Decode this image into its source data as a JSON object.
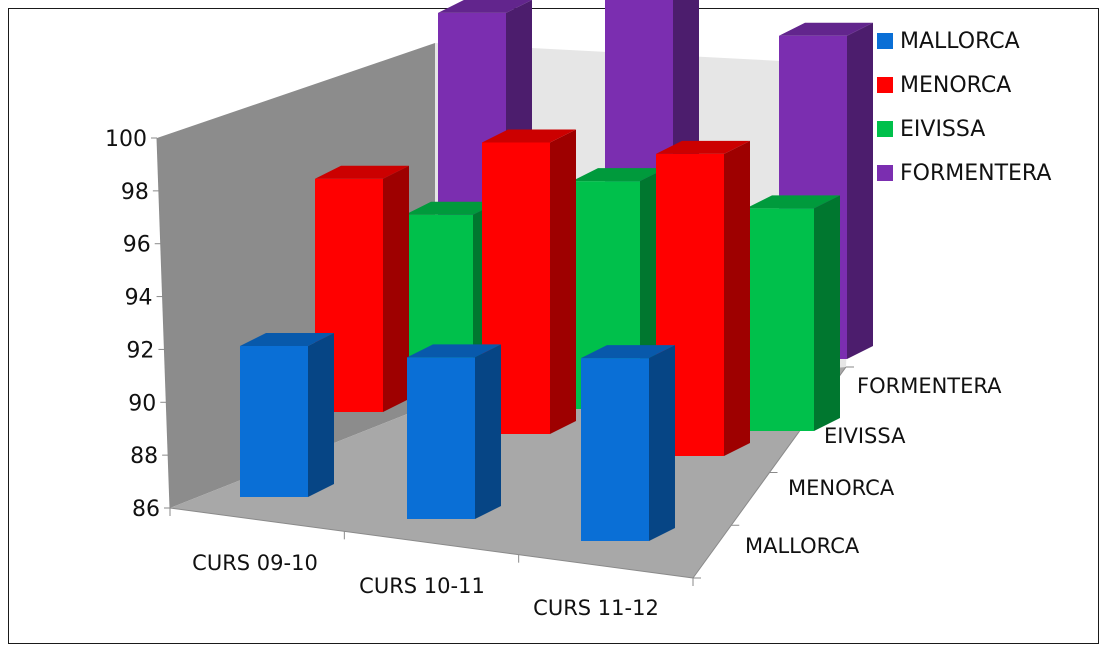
{
  "chart_data": {
    "type": "bar",
    "subtype": "3d-column",
    "title": "",
    "xlabel": "",
    "ylabel": "",
    "categories": [
      "CURS 09-10",
      "CURS 10-11",
      "CURS 11-12"
    ],
    "depth_labels": [
      "MALLORCA",
      "MENORCA",
      "EIVISSA",
      "FORMENTERA"
    ],
    "ylim": [
      86,
      100
    ],
    "yticks": [
      "100",
      "98",
      "96",
      "94",
      "92",
      "90",
      "88",
      "86"
    ],
    "legend_position": "top-right",
    "gridlines": false,
    "series": [
      {
        "name": "MALLORCA",
        "color": "#0a6fd6",
        "values": [
          91.7,
          92.1,
          92.9
        ]
      },
      {
        "name": "MENORCA",
        "color": "#ff0000",
        "values": [
          94.8,
          97.0,
          97.4
        ]
      },
      {
        "name": "EIVISSA",
        "color": "#00c04b",
        "values": [
          92.5,
          94.6,
          94.4
        ]
      },
      {
        "name": "FORMENTERA",
        "color": "#7b2eb0",
        "values": [
          97.4,
          100.0,
          98.2
        ]
      }
    ]
  }
}
